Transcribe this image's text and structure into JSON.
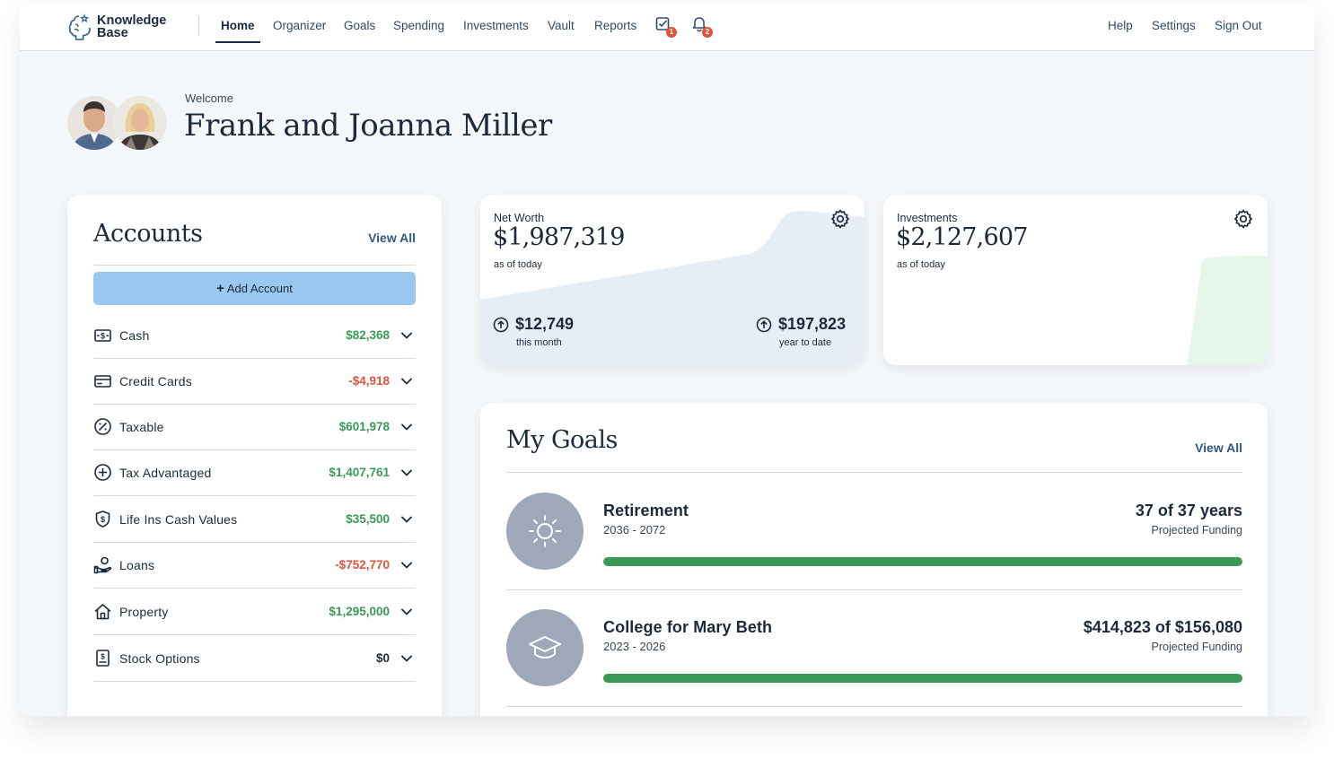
{
  "brand": {
    "line1": "Knowledge",
    "line2": "Base"
  },
  "nav": {
    "links": [
      "Home",
      "Organizer",
      "Goals",
      "Spending",
      "Investments",
      "Vault",
      "Reports"
    ],
    "active": "Home",
    "tasks_badge": "1",
    "alerts_badge": "2",
    "right_links": [
      "Help",
      "Settings",
      "Sign Out"
    ]
  },
  "welcome": {
    "label": "Welcome",
    "name": "Frank and Joanna Miller"
  },
  "accounts": {
    "title": "Accounts",
    "view_all": "View All",
    "add_button": "Add Account",
    "rows": [
      {
        "label": "Cash",
        "value": "$82,368",
        "status": "positive",
        "icon": "cash-icon"
      },
      {
        "label": "Credit Cards",
        "value": "-$4,918",
        "status": "negative",
        "icon": "credit-card-icon"
      },
      {
        "label": "Taxable",
        "value": "$601,978",
        "status": "positive",
        "icon": "percent-icon"
      },
      {
        "label": "Tax Advantaged",
        "value": "$1,407,761",
        "status": "positive",
        "icon": "plus-circle-icon"
      },
      {
        "label": "Life Ins Cash Values",
        "value": "$35,500",
        "status": "positive",
        "icon": "shield-dollar-icon"
      },
      {
        "label": "Loans",
        "value": "-$752,770",
        "status": "negative",
        "icon": "loan-hand-icon"
      },
      {
        "label": "Property",
        "value": "$1,295,000",
        "status": "positive",
        "icon": "house-icon"
      },
      {
        "label": "Stock Options",
        "value": "$0",
        "status": "neutral",
        "icon": "stock-document-icon"
      }
    ]
  },
  "net_worth": {
    "label": "Net Worth",
    "value": "$1,987,319",
    "as_of": "as of today",
    "month_change": "$12,749",
    "month_label": "this month",
    "ytd_change": "$197,823",
    "ytd_label": "year to date"
  },
  "investments": {
    "label": "Investments",
    "value": "$2,127,607",
    "as_of": "as of today"
  },
  "goals": {
    "title": "My Goals",
    "view_all": "View All",
    "items": [
      {
        "name": "Retirement",
        "years": "2036 - 2072",
        "funding": "37 of 37 years",
        "funding_label": "Projected Funding",
        "progress": 1.0,
        "icon": "sun-icon"
      },
      {
        "name": "College for Mary Beth",
        "years": "2023 - 2026",
        "funding": "$414,823 of $156,080",
        "funding_label": "Projected Funding",
        "progress": 1.0,
        "icon": "graduation-cap-icon"
      }
    ]
  },
  "colors": {
    "positive": "#3a9a55",
    "negative": "#e0533d",
    "accent": "#2f5a86",
    "button": "#98c8f0"
  }
}
